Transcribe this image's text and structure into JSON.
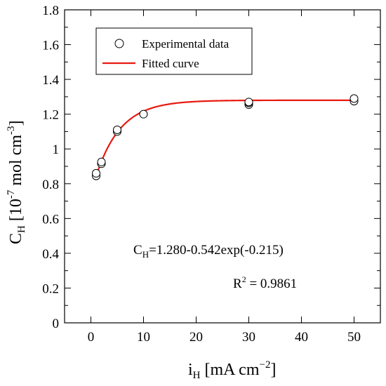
{
  "chart_data": {
    "type": "scatter",
    "xlim": [
      -5,
      55
    ],
    "ylim": [
      0,
      1.8
    ],
    "x_ticks": [
      0,
      10,
      20,
      30,
      40,
      50
    ],
    "y_ticks": [
      0,
      0.2,
      0.4,
      0.6,
      0.8,
      1,
      1.2,
      1.4,
      1.6,
      1.8
    ],
    "x_tick_labels": [
      "0",
      "10",
      "20",
      "30",
      "40",
      "50"
    ],
    "y_tick_labels": [
      "0",
      "0.2",
      "0.4",
      "0.6",
      "0.8",
      "1",
      "1.2",
      "1.4",
      "1.6",
      "1.8"
    ],
    "grid": false,
    "xlabel": {
      "main": "i",
      "sub": "H",
      "rest": " [mA cm",
      "sup": "−2",
      "end": "]"
    },
    "ylabel": {
      "main": "C",
      "sub": "H",
      "rest": " [10",
      "sup": "-7",
      "rest2": " mol cm",
      "sup2": "-3",
      "end": "]"
    },
    "legend": {
      "position": "top-left",
      "entries": [
        {
          "label": "Experimental data",
          "marker": "open-circle"
        },
        {
          "label": "Fitted curve",
          "marker": "line",
          "color": "#e8190f"
        }
      ]
    },
    "series": [
      {
        "name": "Experimental data",
        "style": "open-circle",
        "points": [
          [
            1,
            0.845
          ],
          [
            1,
            0.86
          ],
          [
            2,
            0.915
          ],
          [
            2,
            0.925
          ],
          [
            5,
            1.1
          ],
          [
            5,
            1.11
          ],
          [
            10,
            1.2
          ],
          [
            30,
            1.255
          ],
          [
            30,
            1.265
          ],
          [
            30,
            1.27
          ],
          [
            50,
            1.275
          ],
          [
            50,
            1.29
          ]
        ]
      },
      {
        "name": "Fitted curve",
        "style": "line",
        "color": "#e8190f",
        "equation": {
          "a": 1.28,
          "b": 0.542,
          "k": 0.215
        },
        "x_range": [
          1,
          50
        ]
      }
    ],
    "annotations": {
      "equation": {
        "main": "C",
        "sub": "H",
        "rest": "=1.280-0.542exp(-0.215)"
      },
      "r2": {
        "main": "R",
        "sup": "2",
        "rest": " = 0.9861"
      }
    }
  }
}
